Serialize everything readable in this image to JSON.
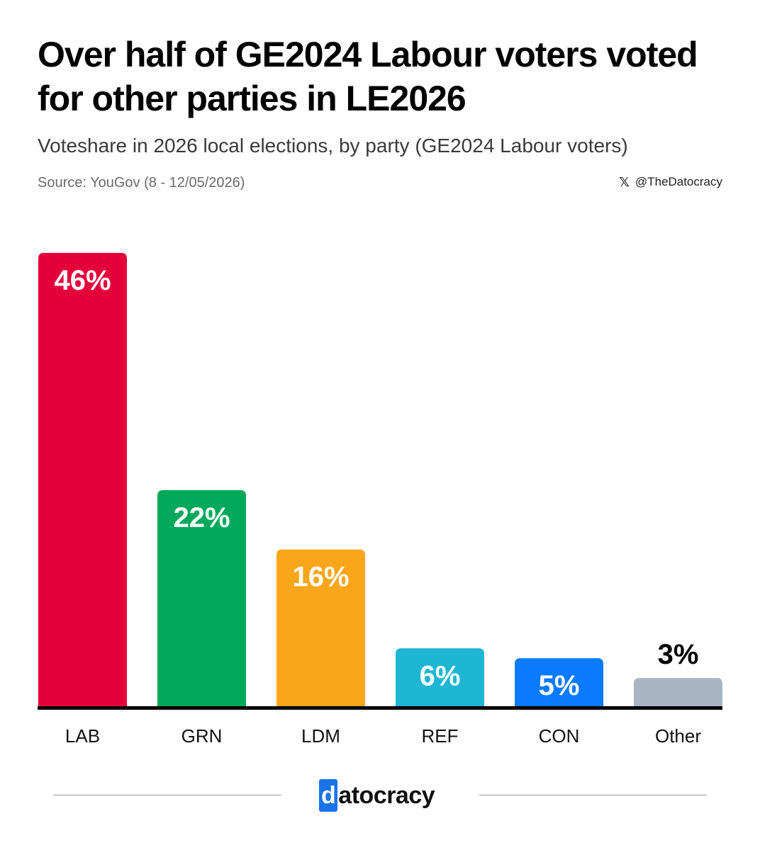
{
  "header": {
    "title": "Over half of GE2024 Labour voters voted for other parties in LE2026",
    "subtitle": "Voteshare in 2026 local elections, by party (GE2024 Labour voters)",
    "source": "Source: YouGov (8 - 12/05/2026)",
    "handle": "@TheDatocracy",
    "handle_icon": "x-logo-icon",
    "x_glyph": "𝕏"
  },
  "chart_data": {
    "type": "bar",
    "title": "Over half of GE2024 Labour voters voted for other parties in LE2026",
    "subtitle": "Voteshare in 2026 local elections, by party (GE2024 Labour voters)",
    "categories": [
      "LAB",
      "GRN",
      "LDM",
      "REF",
      "CON",
      "Other"
    ],
    "values": [
      46,
      22,
      16,
      6,
      5,
      3
    ],
    "value_labels": [
      "46%",
      "22%",
      "16%",
      "6%",
      "5%",
      "3%"
    ],
    "colors": [
      "#E4003B",
      "#02A95B",
      "#FAA61A",
      "#1FB6D3",
      "#0A7AFF",
      "#A9B6C2"
    ],
    "ylim": [
      0,
      46
    ],
    "grid": false,
    "legend": "none",
    "xlabel": "",
    "ylabel": ""
  },
  "footer": {
    "logo_first": "d",
    "logo_rest": "atocracy"
  }
}
